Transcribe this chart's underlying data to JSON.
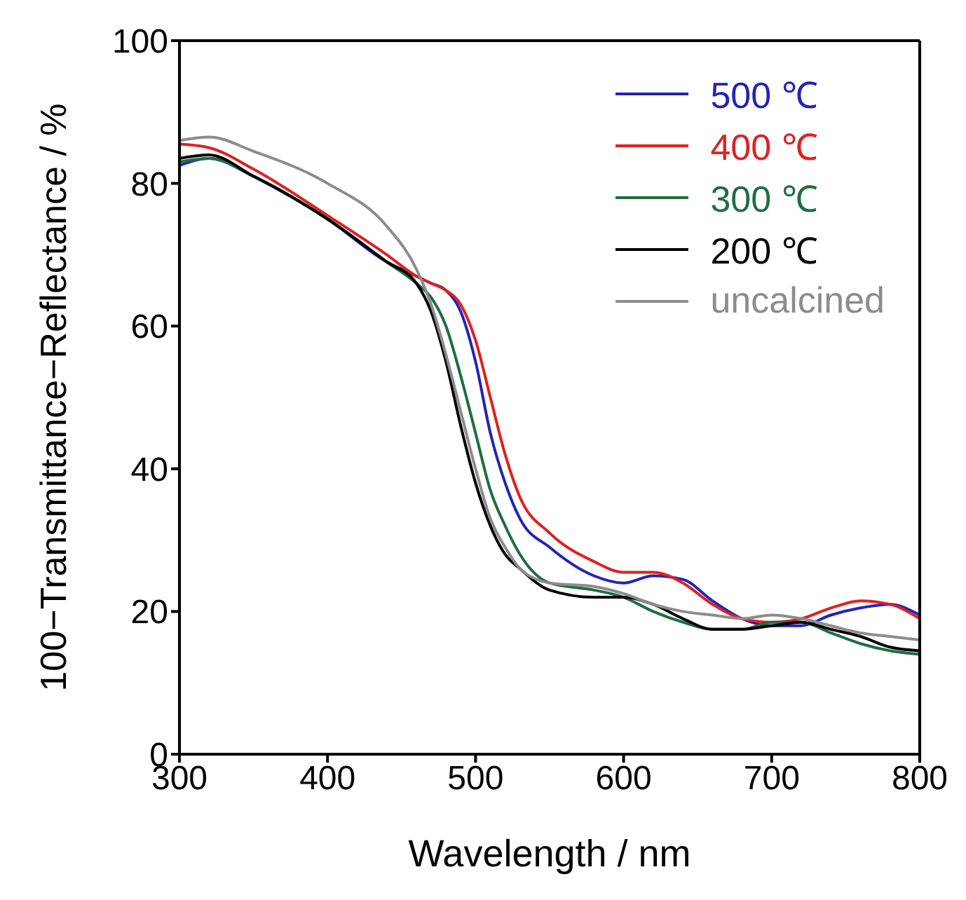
{
  "chart_data": {
    "type": "line",
    "xlabel": "Wavelength  / nm",
    "ylabel": "100−Transmittance−Reflectance / %",
    "x": [
      300,
      320,
      350,
      400,
      440,
      460,
      470,
      480,
      490,
      500,
      510,
      520,
      530,
      550,
      580,
      600,
      620,
      640,
      660,
      680,
      700,
      720,
      740,
      760,
      780,
      800
    ],
    "xlim": [
      300,
      800
    ],
    "xticks": [
      300,
      400,
      500,
      600,
      700,
      800
    ],
    "ylim": [
      0,
      100
    ],
    "yticks": [
      0,
      20,
      40,
      60,
      80,
      100
    ],
    "grid": false,
    "legend": "top right",
    "marker": "none",
    "line_style": "solid",
    "series": [
      {
        "name": "500 ℃",
        "color": "#2323b8",
        "values": [
          82.5,
          83.5,
          81,
          75,
          69,
          67,
          66,
          65,
          62,
          55,
          45,
          38,
          33,
          29,
          25,
          24,
          25,
          24.5,
          21.5,
          19,
          18,
          18,
          19.5,
          20.5,
          21,
          19.5
        ]
      },
      {
        "name": "400 ℃",
        "color": "#e02020",
        "values": [
          85.5,
          85,
          82,
          75.5,
          70,
          67,
          66,
          65,
          63,
          58,
          50,
          42,
          36,
          31,
          27,
          25.5,
          25.5,
          24,
          21,
          19,
          18.5,
          19,
          20.5,
          21.5,
          21,
          19
        ]
      },
      {
        "name": "300 ℃",
        "color": "#1e6e3e",
        "values": [
          83,
          83.5,
          81,
          75,
          69,
          66,
          64,
          60,
          53,
          45,
          37,
          32,
          28,
          24,
          23,
          22,
          20,
          18.5,
          17.5,
          17.5,
          18.5,
          18.5,
          17,
          15.5,
          14.5,
          14
        ]
      },
      {
        "name": "200 ℃",
        "color": "#000000",
        "values": [
          83.5,
          84,
          81,
          75,
          69,
          66,
          62,
          55,
          46,
          38,
          32,
          28,
          26,
          23,
          22,
          22,
          21,
          19,
          17.5,
          17.5,
          18,
          18.5,
          17.5,
          16.5,
          15,
          14.5
        ]
      },
      {
        "name": "uncalcined",
        "color": "#8c8c8c",
        "values": [
          86,
          86.5,
          84.5,
          80,
          74,
          68,
          63,
          56,
          48,
          40,
          33,
          29,
          26,
          24,
          23.5,
          22.5,
          21,
          20,
          19.5,
          19,
          19.5,
          19,
          18,
          17,
          16.5,
          16
        ]
      }
    ]
  }
}
